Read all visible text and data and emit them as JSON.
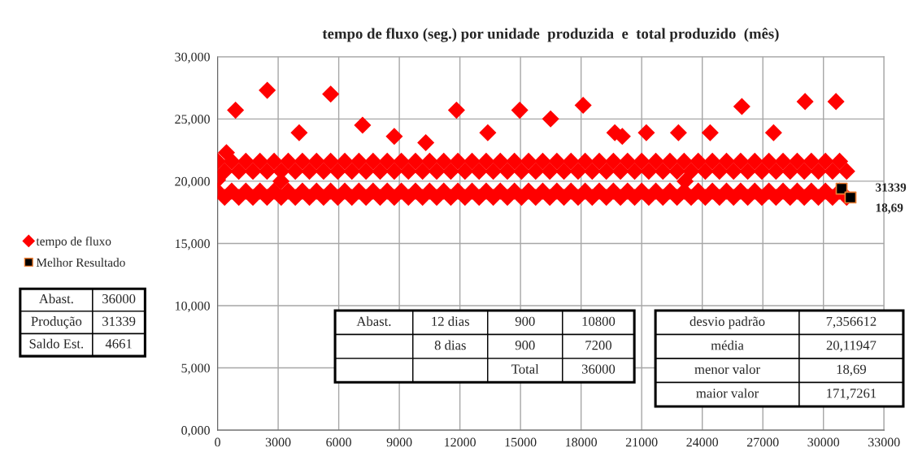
{
  "chart_data": {
    "type": "scatter",
    "title": "tempo de fluxo (seg.) por unidade  produzida  e  total produzido  (mês)",
    "xlim": [
      0,
      33000
    ],
    "xticks": [
      0,
      3000,
      6000,
      9000,
      12000,
      15000,
      18000,
      21000,
      24000,
      27000,
      30000,
      33000
    ],
    "ylim": [
      0,
      30
    ],
    "yticks": [
      {
        "value": 0,
        "label": "0,000"
      },
      {
        "value": 5,
        "label": "5,000"
      },
      {
        "value": 10,
        "label": "10,000"
      },
      {
        "value": 15,
        "label": "15,000"
      },
      {
        "value": 20,
        "label": "20,000"
      },
      {
        "value": 25,
        "label": "25,000"
      },
      {
        "value": 30,
        "label": "30,000"
      }
    ],
    "grid": true,
    "legend": "left",
    "series": [
      {
        "name": "tempo de fluxo",
        "color": "#ff0000",
        "marker": "diamond",
        "x": [
          0,
          700,
          1400,
          2100,
          2800,
          3500,
          4200,
          4900,
          5600,
          6300,
          7000,
          7700,
          8400,
          9100,
          9800,
          10500,
          11200,
          11900,
          12600,
          13300,
          14000,
          14700,
          15400,
          16100,
          16800,
          17500,
          18200,
          18900,
          19600,
          20300,
          21000,
          21700,
          22400,
          23100,
          23800,
          24500,
          25200,
          25900,
          26600,
          27300,
          28000,
          28700,
          29400,
          30100,
          30800,
          350,
          1050,
          1750,
          2450,
          3150,
          3850,
          4550,
          5250,
          5950,
          6650,
          7350,
          8050,
          8750,
          9450,
          10150,
          10850,
          11550,
          12250,
          12950,
          13650,
          14350,
          15050,
          15750,
          16450,
          17150,
          17850,
          18550,
          19250,
          19950,
          20650,
          21350,
          22050,
          22750,
          23450,
          24150,
          24850,
          25550,
          26250,
          26950,
          27650,
          28350,
          29050,
          29750,
          30450,
          31150,
          0,
          700,
          1400,
          2100,
          2800,
          3500,
          4200,
          4900,
          5600,
          6300,
          7000,
          7700,
          8400,
          9100,
          9800,
          10500,
          11200,
          11900,
          12600,
          13300,
          14000,
          14700,
          15400,
          16100,
          16800,
          17500,
          18200,
          18900,
          19600,
          20300,
          21000,
          21700,
          22400,
          23100,
          23800,
          24500,
          25200,
          25900,
          26600,
          27300,
          28000,
          28700,
          29400,
          30100,
          30800,
          350,
          1050,
          1750,
          2450,
          3150,
          3850,
          4550,
          5250,
          5950,
          6650,
          7350,
          8050,
          8750,
          9450,
          10150,
          10850,
          11550,
          12250,
          12950,
          13650,
          14350,
          15050,
          15750,
          16450,
          17150,
          17850,
          18550,
          19250,
          19950,
          20650,
          21350,
          22050,
          22750,
          23450,
          24150,
          24850,
          25550,
          26250,
          26950,
          27650,
          28350,
          29050,
          29750,
          30450,
          31150,
          890,
          2460,
          5600,
          4040,
          7180,
          8750,
          10310,
          11830,
          13380,
          14960,
          16490,
          18100,
          19670,
          20040,
          21230,
          22820,
          24390,
          25960,
          27530,
          29090,
          30620,
          440,
          3140,
          0,
          23150
        ],
        "values": [
          21.6,
          21.6,
          21.6,
          21.6,
          21.6,
          21.6,
          21.6,
          21.6,
          21.6,
          21.6,
          21.6,
          21.6,
          21.6,
          21.6,
          21.6,
          21.6,
          21.6,
          21.6,
          21.6,
          21.6,
          21.6,
          21.6,
          21.6,
          21.6,
          21.6,
          21.6,
          21.6,
          21.6,
          21.6,
          21.6,
          21.6,
          21.6,
          21.6,
          21.6,
          21.6,
          21.6,
          21.6,
          21.6,
          21.6,
          21.6,
          21.6,
          21.6,
          21.6,
          21.6,
          21.6,
          20.8,
          20.8,
          20.8,
          20.8,
          20.8,
          20.8,
          20.8,
          20.8,
          20.8,
          20.8,
          20.8,
          20.8,
          20.8,
          20.8,
          20.8,
          20.8,
          20.8,
          20.8,
          20.8,
          20.8,
          20.8,
          20.8,
          20.8,
          20.8,
          20.8,
          20.8,
          20.8,
          20.8,
          20.8,
          20.8,
          20.8,
          20.8,
          20.8,
          20.8,
          20.8,
          20.8,
          20.8,
          20.8,
          20.8,
          20.8,
          20.8,
          20.8,
          20.8,
          20.8,
          20.8,
          19.2,
          19.2,
          19.2,
          19.2,
          19.2,
          19.2,
          19.2,
          19.2,
          19.2,
          19.2,
          19.2,
          19.2,
          19.2,
          19.2,
          19.2,
          19.2,
          19.2,
          19.2,
          19.2,
          19.2,
          19.2,
          19.2,
          19.2,
          19.2,
          19.2,
          19.2,
          19.2,
          19.2,
          19.2,
          19.2,
          19.2,
          19.2,
          19.2,
          19.2,
          19.2,
          19.2,
          19.2,
          19.2,
          19.2,
          19.2,
          19.2,
          19.2,
          19.2,
          19.2,
          19.2,
          18.7,
          18.7,
          18.7,
          18.7,
          18.7,
          18.7,
          18.7,
          18.7,
          18.7,
          18.7,
          18.7,
          18.7,
          18.7,
          18.7,
          18.7,
          18.7,
          18.7,
          18.7,
          18.7,
          18.7,
          18.7,
          18.7,
          18.7,
          18.7,
          18.7,
          18.7,
          18.7,
          18.7,
          18.7,
          18.7,
          18.7,
          18.7,
          18.7,
          18.7,
          18.7,
          18.7,
          18.7,
          18.7,
          18.7,
          18.7,
          18.7,
          18.7,
          18.7,
          18.7,
          18.7,
          25.7,
          27.3,
          27.0,
          23.9,
          24.5,
          23.6,
          23.1,
          25.7,
          23.9,
          25.7,
          25.0,
          26.1,
          23.9,
          23.6,
          23.9,
          23.9,
          23.9,
          26.0,
          23.9,
          26.4,
          26.4,
          22.3,
          20.0,
          20.1,
          20.0
        ]
      },
      {
        "name": "Melhor Resultado",
        "color": "#000000",
        "marker": "square",
        "x": [
          30900,
          31339
        ],
        "values": [
          19.4,
          18.69
        ]
      }
    ],
    "annotations": [
      "Abast.",
      "36000",
      "Produção",
      "31339",
      "Saldo Est.",
      "4661",
      "Abast.",
      "12 dias",
      "900",
      "10800",
      "8 dias",
      "900",
      "7200",
      "Total",
      "36000",
      "desvio padrão",
      "7,356612",
      "média",
      "20,11947",
      "menor valor",
      "18,69",
      "maior valor",
      "171,7261",
      {
        "text": "31339",
        "x": 31339,
        "y": 18.69
      },
      {
        "text": "18,69",
        "x": 31339,
        "y": 18.69
      }
    ]
  }
}
